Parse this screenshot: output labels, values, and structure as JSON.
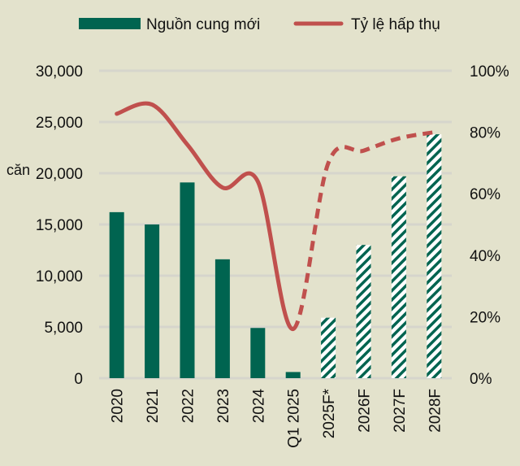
{
  "chart_data": {
    "type": "bar+line",
    "categories": [
      "2020",
      "2021",
      "2022",
      "2023",
      "2024",
      "Q1 2025",
      "2025F*",
      "2026F",
      "2027F",
      "2028F"
    ],
    "forecast_from_index": 6,
    "series": [
      {
        "name": "Nguồn cung mới",
        "type": "bar",
        "axis": "left",
        "color": "#006450",
        "values": [
          16200,
          15000,
          19100,
          11600,
          4900,
          600,
          5900,
          13000,
          19700,
          23800
        ]
      },
      {
        "name": "Tỷ lệ hấp thụ",
        "type": "line",
        "axis": "right",
        "color": "#c0504d",
        "values": [
          86,
          89,
          76,
          62,
          64,
          16,
          70,
          74,
          78,
          80
        ]
      }
    ],
    "ylabel": "căn",
    "ylim": [
      0,
      30000
    ],
    "yticks": [
      "0",
      "5,000",
      "10,000",
      "15,000",
      "20,000",
      "25,000",
      "30,000"
    ],
    "y2lim": [
      0,
      100
    ],
    "y2ticks": [
      "0%",
      "20%",
      "40%",
      "60%",
      "80%",
      "100%"
    ],
    "grid": true,
    "legend": "top"
  }
}
